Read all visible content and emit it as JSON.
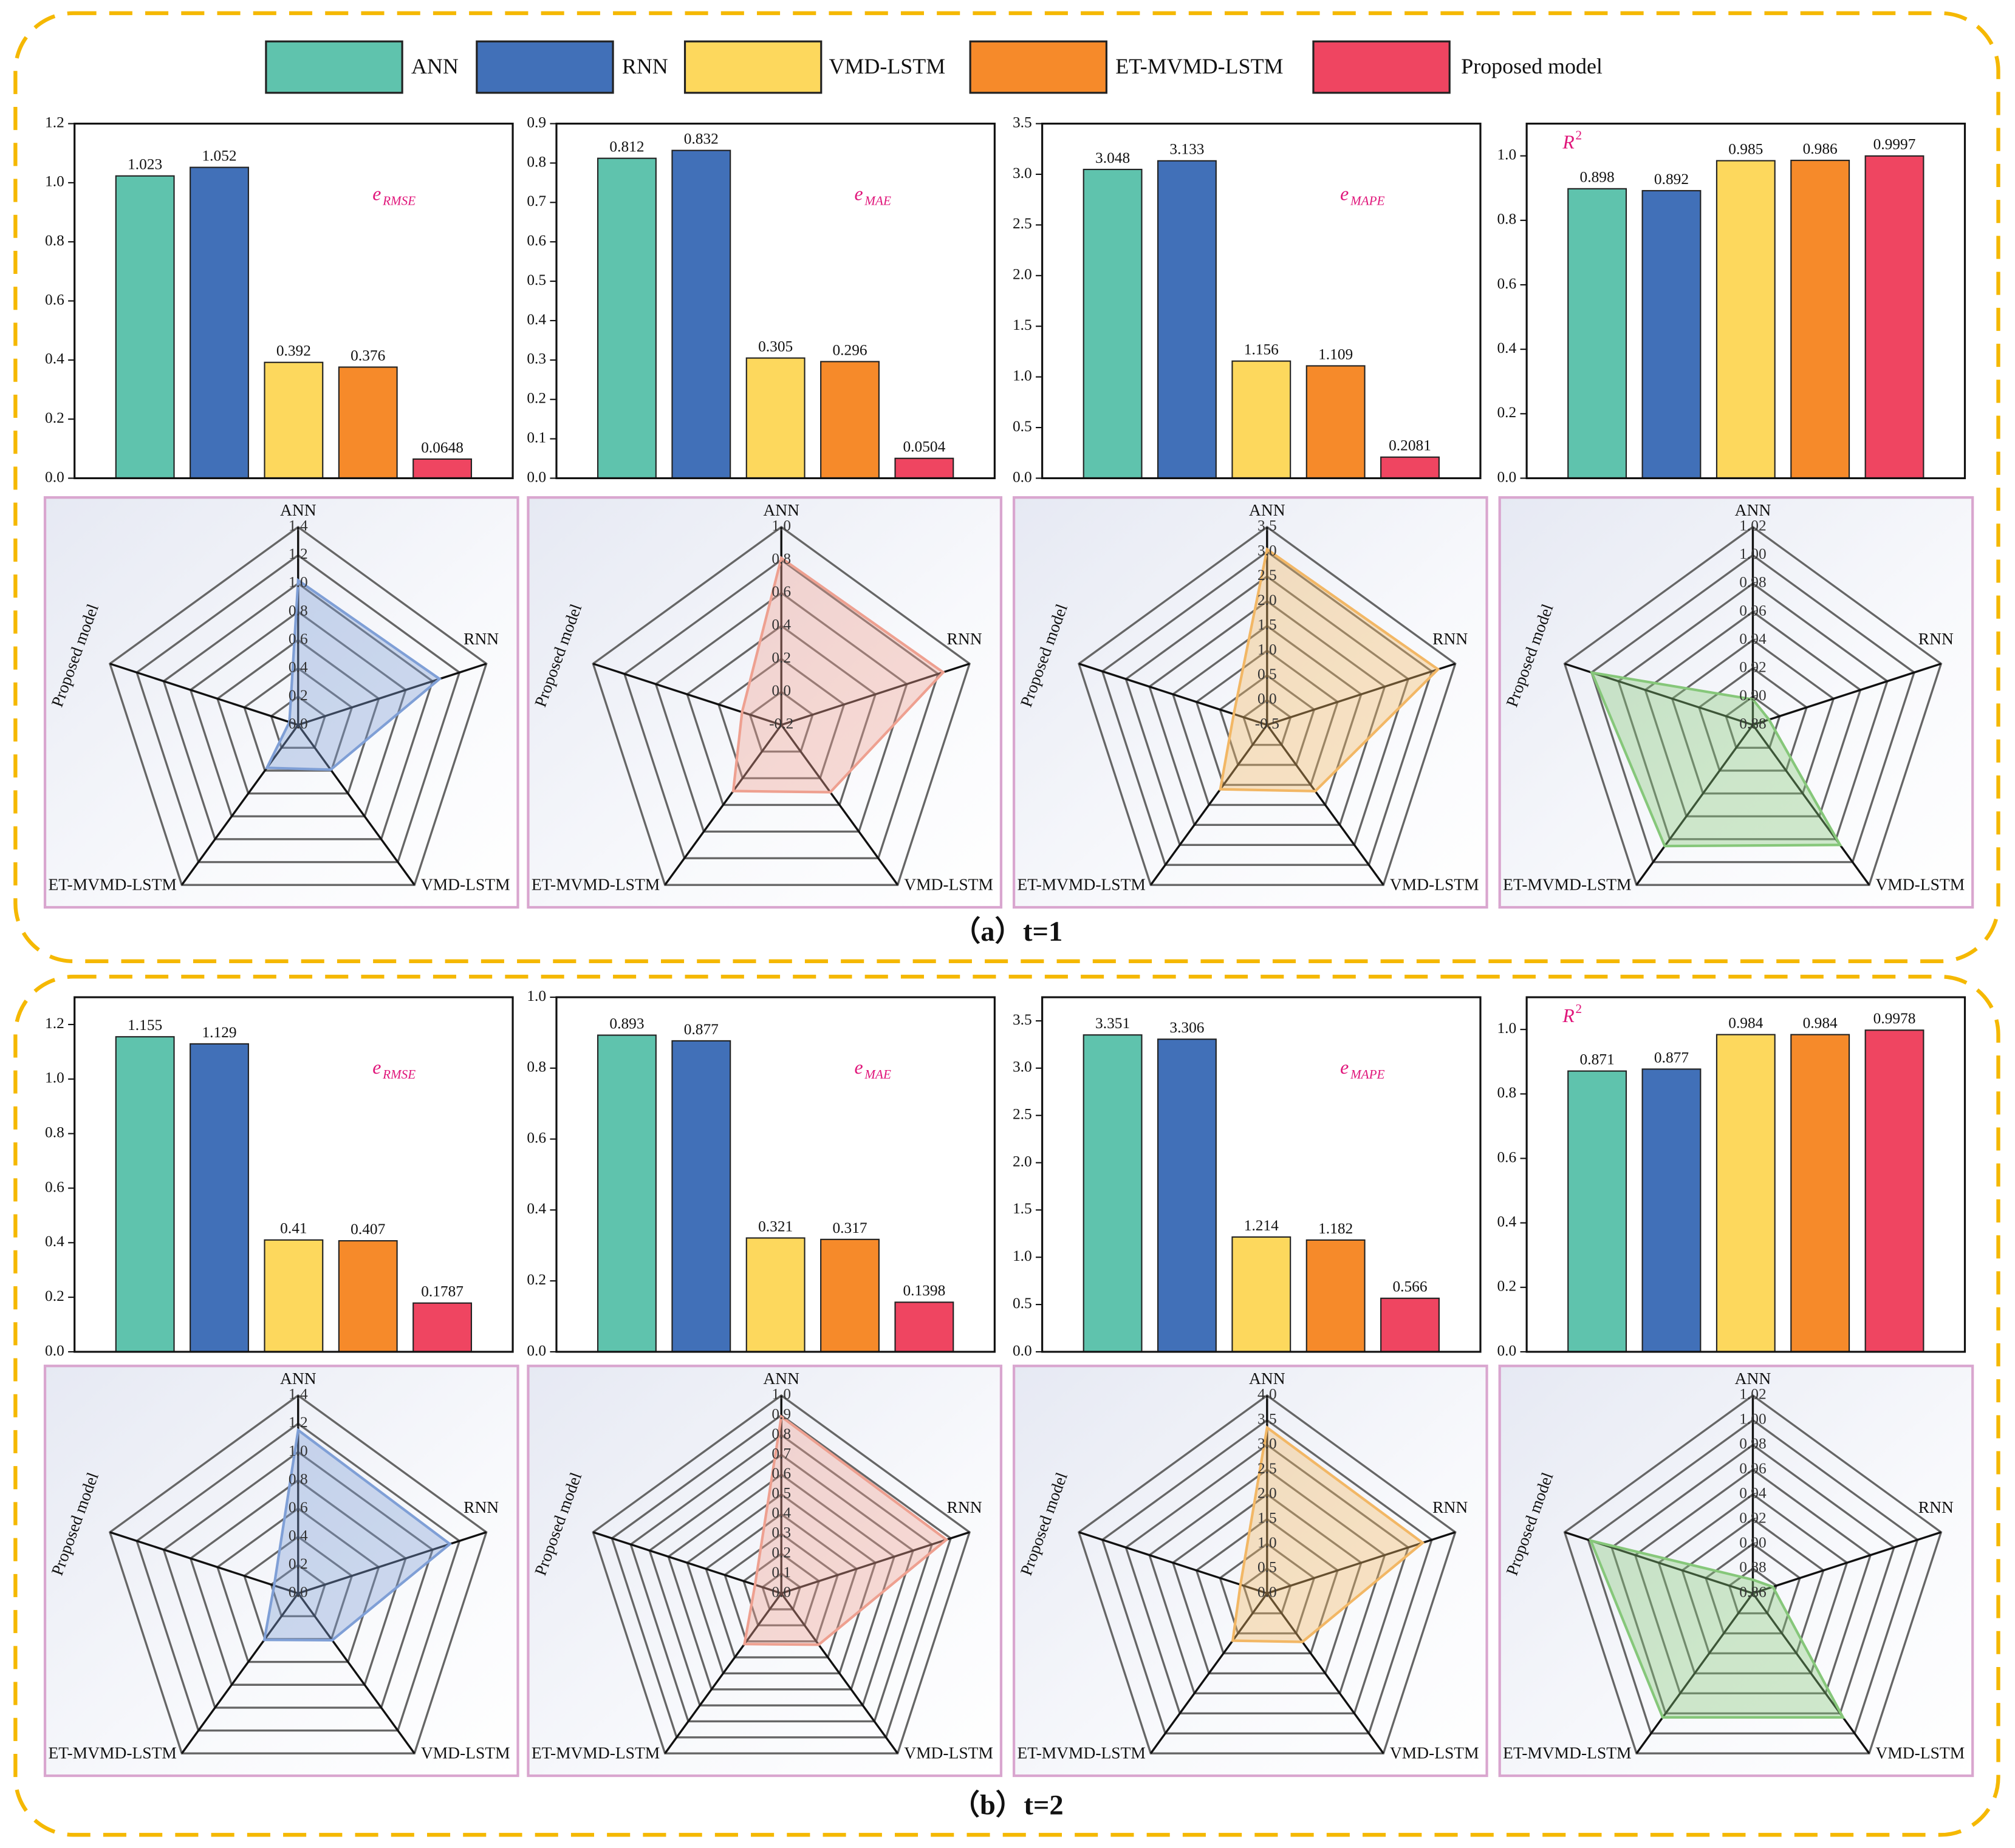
{
  "legend": [
    {
      "name": "ANN",
      "color": "#5fc3ad"
    },
    {
      "name": "RNN",
      "color": "#4170b8"
    },
    {
      "name": "VMD-LSTM",
      "color": "#fdd85d"
    },
    {
      "name": "ET-MVMD-LSTM",
      "color": "#f68a2a"
    },
    {
      "name": "Proposed model",
      "color": "#ef4561"
    }
  ],
  "captions": [
    "（a）t=1",
    "（b）t=2"
  ],
  "chart_data": [
    {
      "type": "bar",
      "annotation": {
        "text": "e",
        "sub": "RMSE"
      },
      "values": [
        1.023,
        1.052,
        0.392,
        0.376,
        0.0648
      ],
      "ylim": [
        0,
        1.2
      ],
      "yticks": [
        {
          "value": 0,
          "label": "0.0"
        },
        0.2,
        0.4,
        0.6,
        0.8,
        {
          "value": 1,
          "label": "1.0"
        },
        1.2
      ]
    },
    {
      "type": "bar",
      "annotation": {
        "text": "e",
        "sub": "MAE"
      },
      "values": [
        0.812,
        0.832,
        0.305,
        0.296,
        0.0504
      ],
      "ylim": [
        0,
        0.9
      ],
      "yticks": [
        {
          "value": 0,
          "label": "0.0"
        },
        0.1,
        0.2,
        0.3,
        0.4,
        0.5,
        0.6,
        0.7,
        0.8,
        0.9
      ]
    },
    {
      "type": "bar",
      "annotation": {
        "text": "e",
        "sub": "MAPE"
      },
      "values": [
        3.048,
        3.133,
        1.156,
        1.109,
        0.2081
      ],
      "ylim": [
        0,
        3.5
      ],
      "yticks": [
        {
          "value": 0,
          "label": "0.0"
        },
        0.5,
        {
          "value": 1,
          "label": "1.0"
        },
        1.5,
        {
          "value": 2,
          "label": "2.0"
        },
        2.5,
        {
          "value": 3,
          "label": "3.0"
        },
        3.5
      ]
    },
    {
      "type": "bar",
      "annotation": {
        "text": "R",
        "sup": "2"
      },
      "values": [
        0.898,
        0.892,
        0.985,
        0.986,
        0.9997
      ],
      "ylim": [
        0,
        1.1
      ],
      "yticks": [
        {
          "value": 0,
          "label": "0.0"
        },
        0.2,
        0.4,
        0.6,
        0.8,
        {
          "value": 1,
          "label": "1.0"
        }
      ]
    },
    {
      "type": "radar",
      "categories": [
        "ANN",
        "RNN",
        "VMD-LSTM",
        "ET-MVMD-LSTM",
        "Proposed model"
      ],
      "values": [
        1.023,
        1.052,
        0.392,
        0.376,
        0.0648
      ],
      "color": "#7f9fd6",
      "rlim": [
        0,
        1.4
      ],
      "rticks": [
        {
          "value": 0,
          "label": "0.0"
        },
        0.2,
        0.4,
        0.6,
        0.8,
        {
          "value": 1,
          "label": "1.0"
        },
        1.2,
        1.4
      ]
    },
    {
      "type": "radar",
      "categories": [
        "ANN",
        "RNN",
        "VMD-LSTM",
        "ET-MVMD-LSTM",
        "Proposed model"
      ],
      "values": [
        0.812,
        0.832,
        0.305,
        0.296,
        0.0504
      ],
      "color": "#eea090",
      "rlim": [
        -0.2,
        1
      ],
      "rticks": [
        -0.2,
        {
          "value": 0,
          "label": "0.0"
        },
        0.2,
        0.4,
        0.6,
        0.8,
        {
          "value": 1,
          "label": "1.0"
        }
      ]
    },
    {
      "type": "radar",
      "categories": [
        "ANN",
        "RNN",
        "VMD-LSTM",
        "ET-MVMD-LSTM",
        "Proposed model"
      ],
      "values": [
        3.048,
        3.133,
        1.156,
        1.109,
        0.2081
      ],
      "color": "#f2b765",
      "rlim": [
        -0.5,
        3.5
      ],
      "rticks": [
        -0.5,
        {
          "value": 0,
          "label": "0.0"
        },
        0.5,
        {
          "value": 1,
          "label": "1.0"
        },
        1.5,
        {
          "value": 2,
          "label": "2.0"
        },
        2.5,
        {
          "value": 3,
          "label": "3.0"
        },
        3.5
      ]
    },
    {
      "type": "radar",
      "categories": [
        "ANN",
        "RNN",
        "VMD-LSTM",
        "ET-MVMD-LSTM",
        "Proposed model"
      ],
      "values": [
        0.898,
        0.892,
        0.985,
        0.986,
        0.9997
      ],
      "color": "#86c77a",
      "rlim": [
        0.88,
        1.02
      ],
      "rticks": [
        0.88,
        {
          "value": 0.9,
          "label": "0.90"
        },
        0.92,
        0.94,
        0.96,
        0.98,
        {
          "value": 1,
          "label": "1.00"
        },
        1.02
      ]
    },
    {
      "type": "bar",
      "annotation": {
        "text": "e",
        "sub": "RMSE"
      },
      "values": [
        1.155,
        1.129,
        0.41,
        0.407,
        0.1787
      ],
      "ylim": [
        0,
        1.3
      ],
      "yticks": [
        {
          "value": 0,
          "label": "0.0"
        },
        0.2,
        0.4,
        0.6,
        0.8,
        {
          "value": 1,
          "label": "1.0"
        },
        1.2
      ]
    },
    {
      "type": "bar",
      "annotation": {
        "text": "e",
        "sub": "MAE"
      },
      "values": [
        0.893,
        0.877,
        0.321,
        0.317,
        0.1398
      ],
      "ylim": [
        0,
        1
      ],
      "yticks": [
        {
          "value": 0,
          "label": "0.0"
        },
        0.2,
        0.4,
        0.6,
        0.8,
        {
          "value": 1,
          "label": "1.0"
        }
      ]
    },
    {
      "type": "bar",
      "annotation": {
        "text": "e",
        "sub": "MAPE"
      },
      "values": [
        3.351,
        3.306,
        1.214,
        1.182,
        0.566
      ],
      "ylim": [
        0,
        3.75
      ],
      "yticks": [
        {
          "value": 0,
          "label": "0.0"
        },
        0.5,
        {
          "value": 1,
          "label": "1.0"
        },
        1.5,
        {
          "value": 2,
          "label": "2.0"
        },
        2.5,
        {
          "value": 3,
          "label": "3.0"
        },
        3.5
      ]
    },
    {
      "type": "bar",
      "annotation": {
        "text": "R",
        "sup": "2"
      },
      "values": [
        0.871,
        0.877,
        0.984,
        0.984,
        0.9978
      ],
      "ylim": [
        0,
        1.1
      ],
      "yticks": [
        {
          "value": 0,
          "label": "0.0"
        },
        0.2,
        0.4,
        0.6,
        0.8,
        {
          "value": 1,
          "label": "1.0"
        }
      ]
    },
    {
      "type": "radar",
      "categories": [
        "ANN",
        "RNN",
        "VMD-LSTM",
        "ET-MVMD-LSTM",
        "Proposed model"
      ],
      "values": [
        1.155,
        1.129,
        0.41,
        0.407,
        0.1787
      ],
      "color": "#7f9fd6",
      "rlim": [
        0,
        1.4
      ],
      "rticks": [
        {
          "value": 0,
          "label": "0.0"
        },
        0.2,
        0.4,
        0.6,
        0.8,
        {
          "value": 1,
          "label": "1.0"
        },
        1.2,
        1.4
      ]
    },
    {
      "type": "radar",
      "categories": [
        "ANN",
        "RNN",
        "VMD-LSTM",
        "ET-MVMD-LSTM",
        "Proposed model"
      ],
      "values": [
        0.893,
        0.877,
        0.321,
        0.317,
        0.1398
      ],
      "color": "#eea090",
      "rlim": [
        0,
        1
      ],
      "rticks": [
        {
          "value": 0,
          "label": "0.0"
        },
        0.1,
        0.2,
        0.3,
        0.4,
        0.5,
        0.6,
        0.7,
        0.8,
        0.9,
        {
          "value": 1,
          "label": "1.0"
        }
      ]
    },
    {
      "type": "radar",
      "categories": [
        "ANN",
        "RNN",
        "VMD-LSTM",
        "ET-MVMD-LSTM",
        "Proposed model"
      ],
      "values": [
        3.351,
        3.306,
        1.214,
        1.182,
        0.566
      ],
      "color": "#f2b765",
      "rlim": [
        0,
        4
      ],
      "rticks": [
        {
          "value": 0,
          "label": "0.0"
        },
        0.5,
        {
          "value": 1,
          "label": "1.0"
        },
        1.5,
        {
          "value": 2,
          "label": "2.0"
        },
        2.5,
        {
          "value": 3,
          "label": "3.0"
        },
        3.5,
        {
          "value": 4,
          "label": "4.0"
        }
      ]
    },
    {
      "type": "radar",
      "categories": [
        "ANN",
        "RNN",
        "VMD-LSTM",
        "ET-MVMD-LSTM",
        "Proposed model"
      ],
      "values": [
        0.871,
        0.877,
        0.984,
        0.984,
        0.9978
      ],
      "color": "#86c77a",
      "rlim": [
        0.86,
        1.02
      ],
      "rticks": [
        0.86,
        0.88,
        {
          "value": 0.9,
          "label": "0.90"
        },
        0.92,
        0.94,
        0.96,
        0.98,
        {
          "value": 1,
          "label": "1.00"
        },
        1.02
      ]
    }
  ]
}
